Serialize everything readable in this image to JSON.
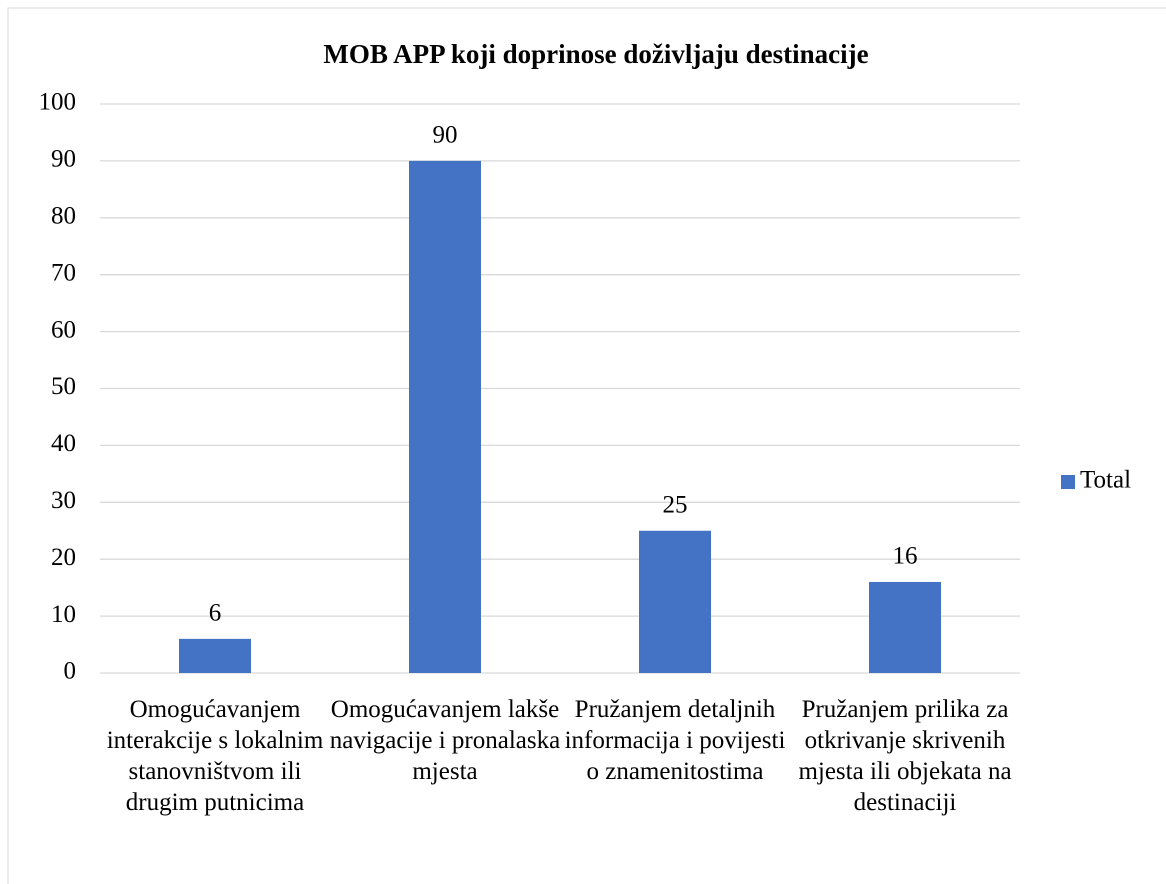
{
  "chart_data": {
    "type": "bar",
    "title": "MOB APP koji doprinose doživljaju destinacije",
    "categories": [
      "Omogućavanjem interakcije s lokalnim stanovništvom ili drugim putnicima",
      "Omogućavanjem lakše navigacije i pronalaska mjesta",
      "Pružanjem detaljnih informacija i povijesti o znamenitostima",
      "Pružanjem prilika za otkrivanje skrivenih mjesta ili objekata na destinaciji"
    ],
    "series": [
      {
        "name": "Total",
        "color": "#4472c4",
        "values": [
          6,
          90,
          25,
          16
        ]
      }
    ],
    "ylim": [
      0,
      100
    ],
    "yticks": [
      0,
      10,
      20,
      30,
      40,
      50,
      60,
      70,
      80,
      90,
      100
    ],
    "grid": true,
    "legend": "right"
  }
}
